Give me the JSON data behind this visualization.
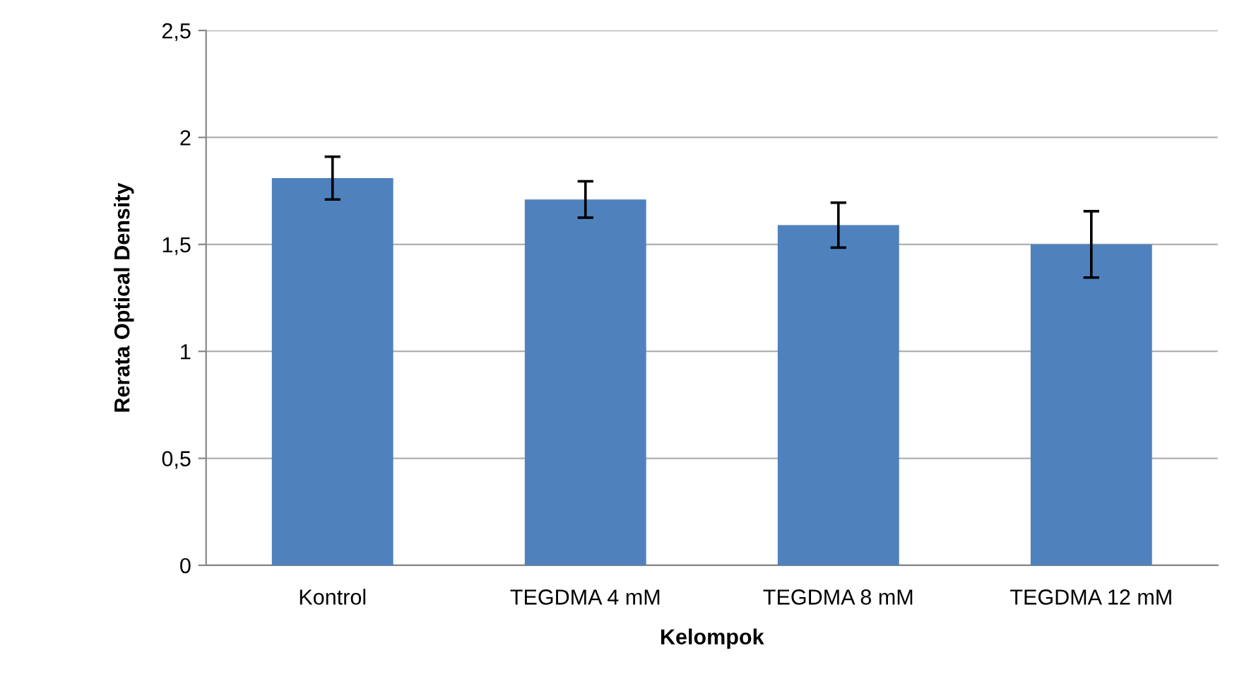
{
  "chart_data": {
    "type": "bar",
    "xlabel": "Kelompok",
    "ylabel": "Rerata Optical Density",
    "categories": [
      "Kontrol",
      "TEGDMA 4 mM",
      "TEGDMA 8 mM",
      "TEGDMA 12 mM"
    ],
    "values": [
      1.81,
      1.71,
      1.59,
      1.5
    ],
    "errors": [
      0.1,
      0.085,
      0.105,
      0.155
    ],
    "color": "#4f81bd",
    "ylim": [
      0,
      2.5
    ],
    "yticks": [
      0,
      {
        "value": 0.5,
        "label": "0,5"
      },
      1,
      {
        "value": 1.5,
        "label": "1,5"
      },
      2,
      {
        "value": 2.5,
        "label": "2,5"
      }
    ],
    "grid": "y"
  }
}
